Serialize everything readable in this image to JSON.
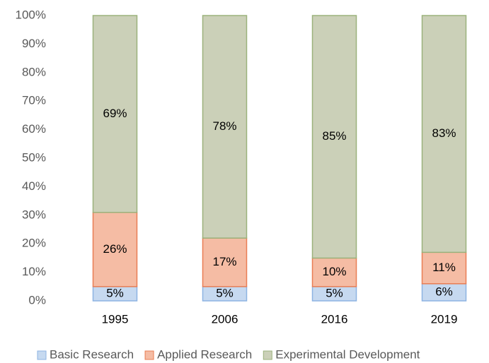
{
  "chart_data": {
    "type": "stacked_bar",
    "categories": [
      "1995",
      "2006",
      "2016",
      "2019"
    ],
    "series": [
      {
        "name": "Basic Research",
        "color": "#c6d9f0",
        "edge": "#8db3e2",
        "values": [
          5,
          5,
          5,
          6
        ],
        "value_labels": [
          "5%",
          "5%",
          "5%",
          "6%"
        ]
      },
      {
        "name": "Applied Research",
        "color": "#f5bca4",
        "edge": "#e97e54",
        "values": [
          26,
          17,
          10,
          11
        ],
        "value_labels": [
          "26%",
          "17%",
          "10%",
          "11%"
        ]
      },
      {
        "name": "Experimental Development",
        "color": "#cbd0b8",
        "edge": "#9bb27c",
        "values": [
          69,
          78,
          85,
          83
        ],
        "value_labels": [
          "69%",
          "78%",
          "85%",
          "83%"
        ]
      }
    ],
    "ylim": [
      0,
      100
    ],
    "yticks": [
      {
        "value": 0,
        "label": "0%"
      },
      {
        "value": 10,
        "label": "10%"
      },
      {
        "value": 20,
        "label": "20%"
      },
      {
        "value": 30,
        "label": "30%"
      },
      {
        "value": 40,
        "label": "40%"
      },
      {
        "value": 50,
        "label": "50%"
      },
      {
        "value": 60,
        "label": "60%"
      },
      {
        "value": 70,
        "label": "70%"
      },
      {
        "value": 80,
        "label": "80%"
      },
      {
        "value": 90,
        "label": "90%"
      },
      {
        "value": 100,
        "label": "100%"
      }
    ],
    "legend": "bottom"
  }
}
